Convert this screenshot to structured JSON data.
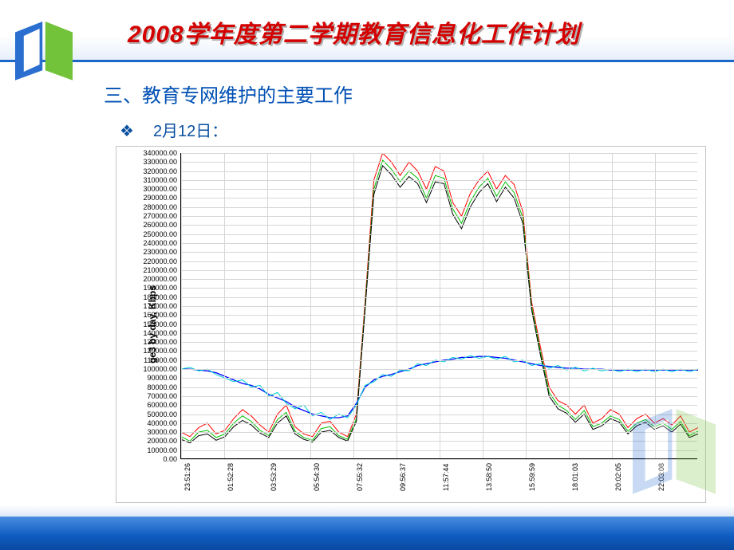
{
  "page": {
    "title": "2008学年度第二学期教育信息化工作计划",
    "section_heading": "三、教育专网维护的主要工作",
    "bullet_label": "2月12日：",
    "bullet_glyph": "❖"
  },
  "chart": {
    "type": "line",
    "ylabel": "ge3 by day, Kbps",
    "title_fontsize": 30,
    "label_fontsize": 12,
    "background_color": "#ffffff",
    "grid_color": "#d6d6d6",
    "axis_color": "#000000",
    "ylim": [
      0,
      340000
    ],
    "ytick_step": 10000,
    "yticks": [
      "0.00",
      "10000.00",
      "20000.00",
      "30000.00",
      "40000.00",
      "50000.00",
      "60000.00",
      "70000.00",
      "80000.00",
      "90000.00",
      "100000.00",
      "110000.00",
      "120000.00",
      "130000.00",
      "140000.00",
      "150000.00",
      "160000.00",
      "170000.00",
      "180000.00",
      "190000.00",
      "200000.00",
      "210000.00",
      "220000.00",
      "230000.00",
      "240000.00",
      "250000.00",
      "260000.00",
      "270000.00",
      "280000.00",
      "290000.00",
      "300000.00",
      "310000.00",
      "320000.00",
      "330000.00",
      "340000.00"
    ],
    "xticks": [
      "23:51:26",
      "01:52:28",
      "03:53:29",
      "05:54:30",
      "07:55:32",
      "09:56:37",
      "11:57:44",
      "13:58:50",
      "15:59:59",
      "18:01:03",
      "20:02:05",
      "22:03:08"
    ],
    "x_positions": [
      0.0,
      0.083,
      0.167,
      0.25,
      0.333,
      0.417,
      0.5,
      0.583,
      0.667,
      0.75,
      0.833,
      0.917
    ],
    "series": [
      {
        "name": "red",
        "color": "#ff0000",
        "width": 1,
        "points_y": [
          30000,
          25000,
          35000,
          40000,
          28000,
          32000,
          45000,
          55000,
          48000,
          38000,
          30000,
          50000,
          60000,
          36000,
          28000,
          25000,
          40000,
          42000,
          30000,
          25000,
          50000,
          175000,
          310000,
          340000,
          330000,
          315000,
          330000,
          320000,
          300000,
          325000,
          320000,
          285000,
          270000,
          295000,
          310000,
          320000,
          300000,
          315000,
          305000,
          275000,
          175000,
          125000,
          80000,
          65000,
          60000,
          50000,
          60000,
          40000,
          45000,
          55000,
          50000,
          35000,
          45000,
          50000,
          40000,
          45000,
          38000,
          48000,
          30000,
          35000
        ]
      },
      {
        "name": "green",
        "color": "#00c000",
        "width": 1,
        "points_y": [
          25000,
          20000,
          30000,
          32000,
          24000,
          28000,
          40000,
          48000,
          42000,
          32000,
          26000,
          44000,
          52000,
          31000,
          24000,
          21000,
          34000,
          36000,
          26000,
          22000,
          45000,
          170000,
          300000,
          332000,
          322000,
          308000,
          320000,
          312000,
          290000,
          315000,
          312000,
          278000,
          262000,
          286000,
          302000,
          312000,
          292000,
          308000,
          296000,
          268000,
          170000,
          120000,
          74000,
          60000,
          54000,
          44000,
          54000,
          36000,
          40000,
          48000,
          44000,
          31000,
          40000,
          44000,
          36000,
          40000,
          33000,
          42000,
          26000,
          31000
        ]
      },
      {
        "name": "black",
        "color": "#000000",
        "width": 1,
        "points_y": [
          22000,
          18000,
          26000,
          28000,
          21000,
          25000,
          36000,
          43000,
          38000,
          29000,
          24000,
          40000,
          48000,
          28000,
          22000,
          19000,
          30000,
          32000,
          24000,
          20000,
          42000,
          166000,
          294000,
          326000,
          316000,
          302000,
          314000,
          306000,
          285000,
          308000,
          306000,
          272000,
          256000,
          280000,
          296000,
          306000,
          286000,
          302000,
          290000,
          262000,
          166000,
          116000,
          70000,
          56000,
          51000,
          41000,
          50000,
          33000,
          37000,
          45000,
          41000,
          28000,
          37000,
          41000,
          33000,
          37000,
          30000,
          39000,
          24000,
          28000
        ]
      },
      {
        "name": "blue",
        "color": "#0000ff",
        "width": 1.3,
        "points_y": [
          100000,
          100000,
          99000,
          98000,
          96000,
          92000,
          88000,
          84000,
          82000,
          78000,
          72000,
          68000,
          64000,
          58000,
          54000,
          50000,
          48000,
          46000,
          46000,
          48000,
          62000,
          80000,
          88000,
          92000,
          94000,
          97000,
          100000,
          104000,
          106000,
          108000,
          110000,
          111000,
          113000,
          113000,
          114000,
          114000,
          113000,
          112000,
          110000,
          108000,
          106000,
          104000,
          103000,
          102000,
          101000,
          101000,
          100000,
          100000,
          100000,
          99000,
          99000,
          99000,
          99000,
          99000,
          99000,
          99000,
          99000,
          99000,
          99000,
          99000
        ]
      },
      {
        "name": "cyan",
        "color": "#00d0d0",
        "width": 1,
        "points_y": [
          100000,
          102000,
          98000,
          100000,
          94000,
          90000,
          86000,
          88000,
          80000,
          82000,
          70000,
          74000,
          62000,
          56000,
          60000,
          48000,
          52000,
          44000,
          50000,
          46000,
          60000,
          82000,
          86000,
          94000,
          92000,
          99000,
          98000,
          106000,
          104000,
          110000,
          108000,
          113000,
          111000,
          115000,
          112000,
          114000,
          111000,
          114000,
          108000,
          110000,
          104000,
          106000,
          101000,
          104000,
          99000,
          102000,
          98000,
          101000,
          98000,
          100000,
          97000,
          100000,
          97000,
          100000,
          97000,
          100000,
          97000,
          100000,
          97000,
          100000
        ]
      }
    ]
  },
  "logo": {
    "blue": "#2a6fd0",
    "green": "#72c23a",
    "white": "#ffffff"
  }
}
